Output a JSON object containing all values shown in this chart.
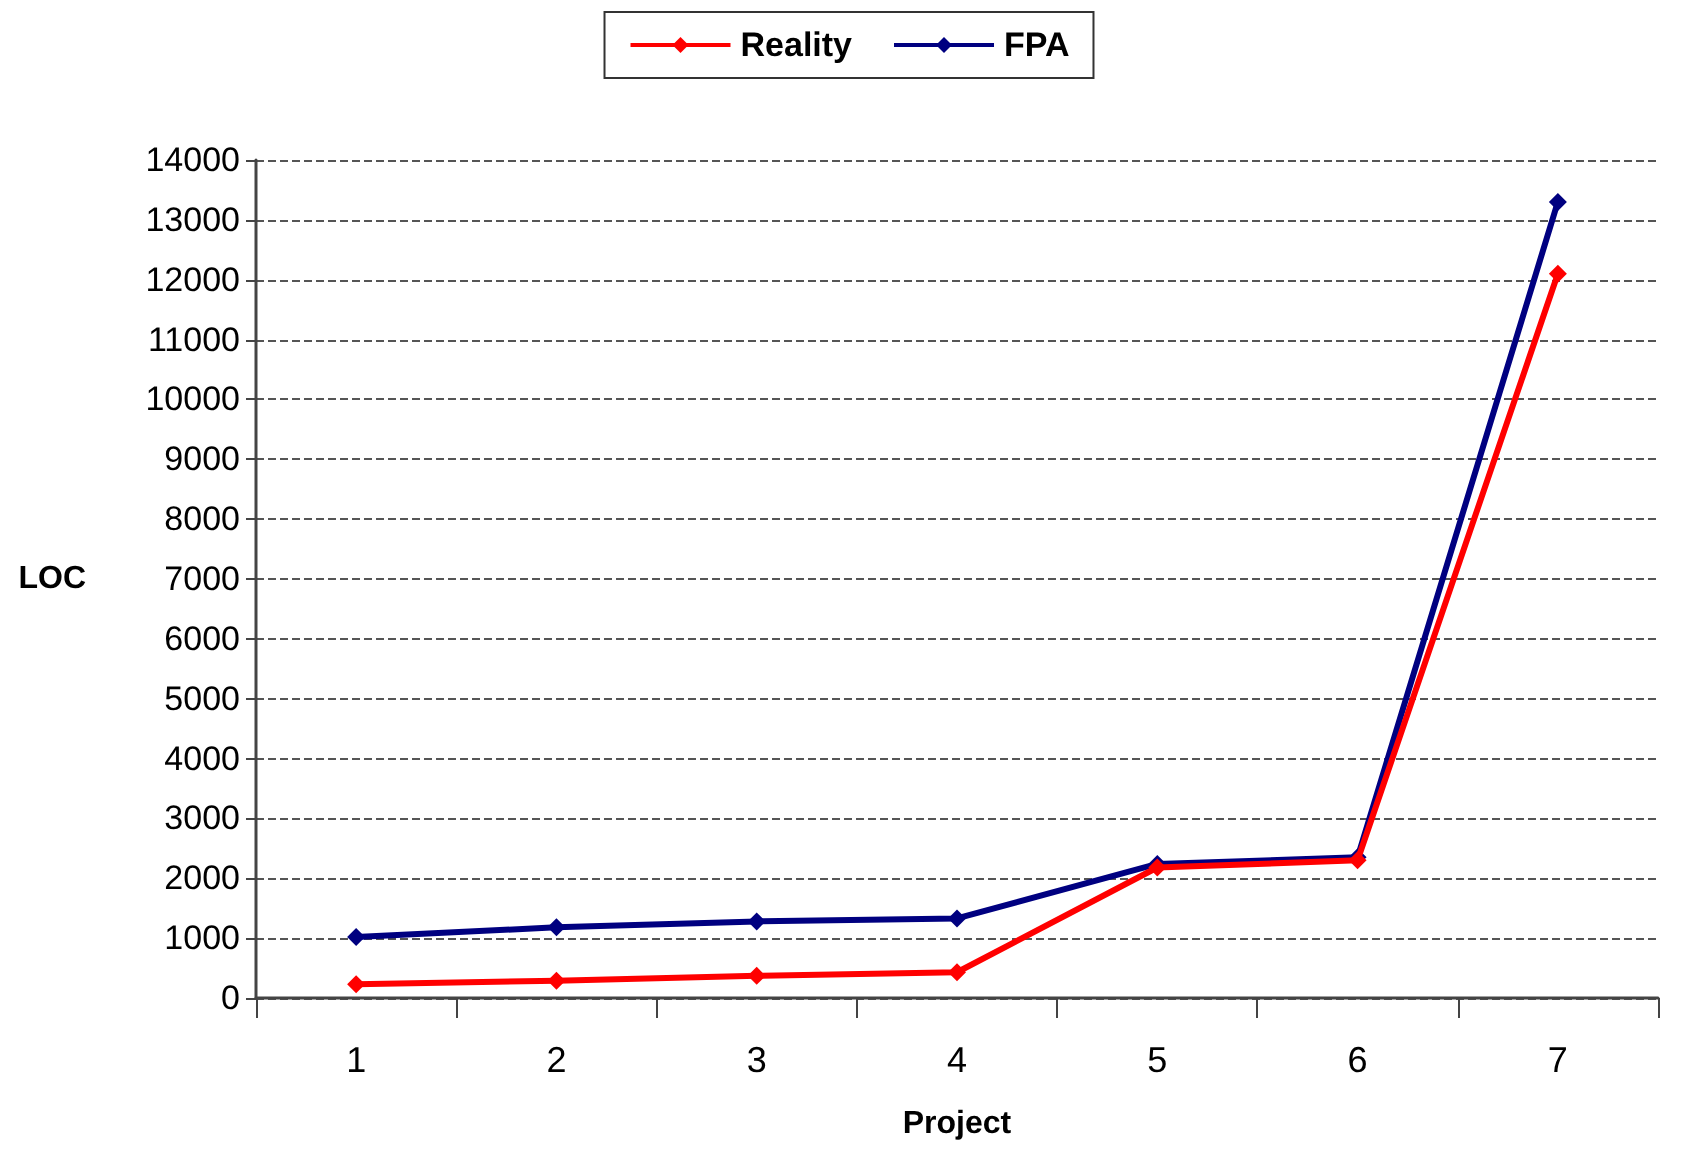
{
  "chart_data": {
    "type": "line",
    "xlabel": "Project",
    "ylabel": "LOC",
    "categories": [
      "1",
      "2",
      "3",
      "4",
      "5",
      "6",
      "7"
    ],
    "series": [
      {
        "name": "Reality",
        "color": "#ff0000",
        "values": [
          230,
          290,
          370,
          430,
          2180,
          2300,
          12100
        ]
      },
      {
        "name": "FPA",
        "color": "#000080",
        "values": [
          1020,
          1180,
          1280,
          1330,
          2240,
          2350,
          13300
        ]
      }
    ],
    "ylim": [
      0,
      14000
    ],
    "yticks": [
      0,
      1000,
      2000,
      3000,
      4000,
      5000,
      6000,
      7000,
      8000,
      9000,
      10000,
      11000,
      12000,
      13000,
      14000
    ],
    "grid": "y",
    "legend": "top",
    "marker": "diamond",
    "line_style": "solid"
  }
}
